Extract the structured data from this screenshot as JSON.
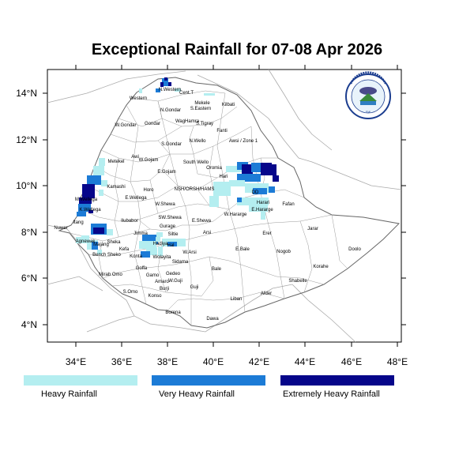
{
  "title": "Exceptional Rainfall for 07-08 Apr 2026",
  "axes": {
    "x_ticks": [
      "34°E",
      "36°E",
      "38°E",
      "40°E",
      "42°E",
      "44°E",
      "46°E",
      "48°E"
    ],
    "y_ticks": [
      "14°N",
      "12°N",
      "10°N",
      "8°N",
      "6°N",
      "4°N"
    ]
  },
  "logo": {
    "text_top": "ETHIOPIAN METEOROLOGY INSTITUTE",
    "text_bottom": "Ethiopian Meteorological Institute"
  },
  "legend": [
    {
      "label": "Heavy Rainfall",
      "color": "#b4eef0"
    },
    {
      "label": "Very Heavy Rainfall",
      "color": "#1c7bd6"
    },
    {
      "label": "Extremely Heavy Rainfall",
      "color": "#06068a"
    }
  ],
  "regions": [
    {
      "label": "N.Western"
    },
    {
      "label": "Cent.T"
    },
    {
      "label": "Western"
    },
    {
      "label": "Mekele"
    },
    {
      "label": "S.Eastern"
    },
    {
      "label": "N.Gondar"
    },
    {
      "label": "Kilbati"
    },
    {
      "label": "W.Gondar"
    },
    {
      "label": "Gondar"
    },
    {
      "label": "WagHamra"
    },
    {
      "label": "S.Tigray"
    },
    {
      "label": "Fanti"
    },
    {
      "label": "S.Gondar"
    },
    {
      "label": "N.Wello"
    },
    {
      "label": "Awsi / Zone 1"
    },
    {
      "label": "Metekel"
    },
    {
      "label": "Awi"
    },
    {
      "label": "W.Gojam"
    },
    {
      "label": "South Wello"
    },
    {
      "label": "Oromia"
    },
    {
      "label": "E.Gojam"
    },
    {
      "label": "Hari"
    },
    {
      "label": "Kamashi"
    },
    {
      "label": "Horo"
    },
    {
      "label": "NSH/ORSH/HAMS"
    },
    {
      "label": "DD"
    },
    {
      "label": "M.Wellega"
    },
    {
      "label": "E.Wellega"
    },
    {
      "label": "W.Shewa"
    },
    {
      "label": "Harari"
    },
    {
      "label": "Fafan"
    },
    {
      "label": "K.Wellega"
    },
    {
      "label": "W.Hararge"
    },
    {
      "label": "E.Hararge"
    },
    {
      "label": "SW.Shewa"
    },
    {
      "label": "E.Shewa"
    },
    {
      "label": "Ilubabor"
    },
    {
      "label": "Nuwer"
    },
    {
      "label": "Itang"
    },
    {
      "label": "Jimma"
    },
    {
      "label": "Gurage"
    },
    {
      "label": "Siltie"
    },
    {
      "label": "Arsi"
    },
    {
      "label": "Erer"
    },
    {
      "label": "Jarar"
    },
    {
      "label": "Agnewak"
    },
    {
      "label": "Sheka"
    },
    {
      "label": "Hadiya"
    },
    {
      "label": "Hal"
    },
    {
      "label": "Majang"
    },
    {
      "label": "Kefa"
    },
    {
      "label": "W.Arsi"
    },
    {
      "label": "Bench Sheko"
    },
    {
      "label": "Konta"
    },
    {
      "label": "Wolayita"
    },
    {
      "label": "E.Bale"
    },
    {
      "label": "Sidama"
    },
    {
      "label": "Nogob"
    },
    {
      "label": "Doolo"
    },
    {
      "label": "Korahe"
    },
    {
      "label": "Mirab Omo"
    },
    {
      "label": "Goffa"
    },
    {
      "label": "Gedeo"
    },
    {
      "label": "Bale"
    },
    {
      "label": "Gamo"
    },
    {
      "label": "Amaro"
    },
    {
      "label": "W.Guji"
    },
    {
      "label": "Shabelle"
    },
    {
      "label": "S.Omo"
    },
    {
      "label": "Burji"
    },
    {
      "label": "Guji"
    },
    {
      "label": "Konso"
    },
    {
      "label": "Liban"
    },
    {
      "label": "Afder"
    },
    {
      "label": "Borena"
    },
    {
      "label": "Dawa"
    }
  ]
}
